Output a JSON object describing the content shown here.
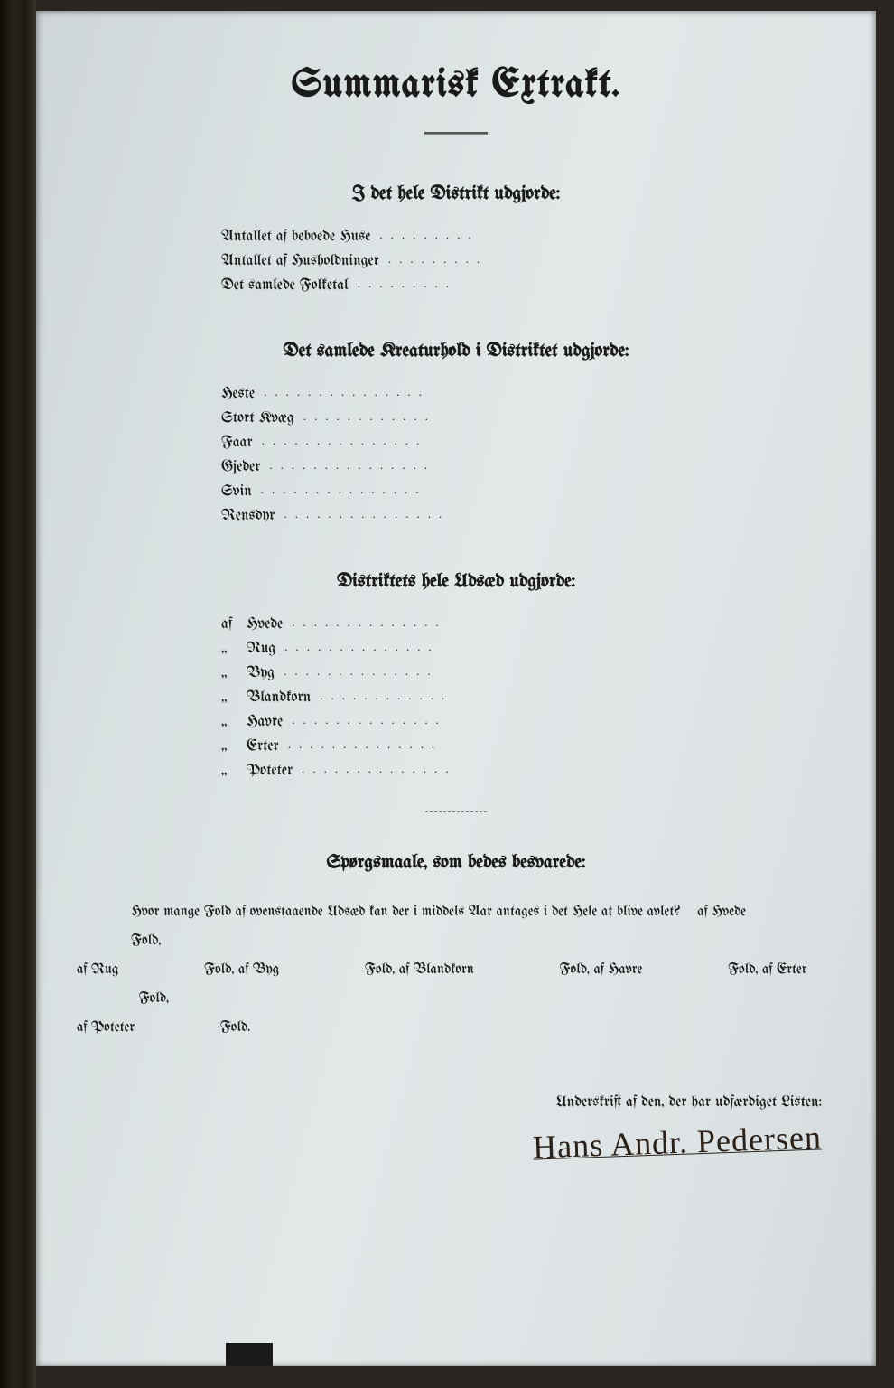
{
  "title": "Summarisk Extrakt.",
  "section1": {
    "heading": "I det hele Distrikt udgjorde:",
    "rows": [
      {
        "label": "Antallet af beboede Huse"
      },
      {
        "label": "Antallet af Husholdninger"
      },
      {
        "label": "Det samlede Folketal"
      }
    ]
  },
  "section2": {
    "heading": "Det samlede Kreaturhold i Distriktet udgjorde:",
    "rows": [
      {
        "label": "Heste"
      },
      {
        "label": "Stort Kvæg"
      },
      {
        "label": "Faar"
      },
      {
        "label": "Gjeder"
      },
      {
        "label": "Svin"
      },
      {
        "label": "Rensdyr"
      }
    ]
  },
  "section3": {
    "heading": "Distriktets hele Udsæd udgjorde:",
    "rows": [
      {
        "prefix": "af",
        "label": "Hvede"
      },
      {
        "prefix": "„",
        "label": "Rug"
      },
      {
        "prefix": "„",
        "label": "Byg"
      },
      {
        "prefix": "„",
        "label": "Blandkorn"
      },
      {
        "prefix": "„",
        "label": "Havre"
      },
      {
        "prefix": "„",
        "label": "Erter"
      },
      {
        "prefix": "„",
        "label": "Poteter"
      }
    ]
  },
  "questions": {
    "heading": "Spørgsmaale, som bedes besvarede:",
    "line1_a": "Hvor mange Fold af ovenstaaende Udsæd kan der i middels Aar antages i det Hele at blive avlet?",
    "line1_b": "af Hvede",
    "fold": "Fold,",
    "fold_end": "Fold.",
    "items": [
      "af Rug",
      "Fold, af Byg",
      "Fold, af Blandkorn",
      "Fold, af Havre",
      "Fold, af Erter"
    ],
    "line3": "af Poteter"
  },
  "signature": {
    "label": "Underskrift af den, der har udfærdiget Listen:",
    "name": "Hans Andr. Pedersen"
  },
  "style": {
    "page_bg": "#dfe5e6",
    "text_color": "#1a1a1a",
    "title_fontsize": 44,
    "heading_fontsize": 21,
    "body_fontsize": 17
  }
}
